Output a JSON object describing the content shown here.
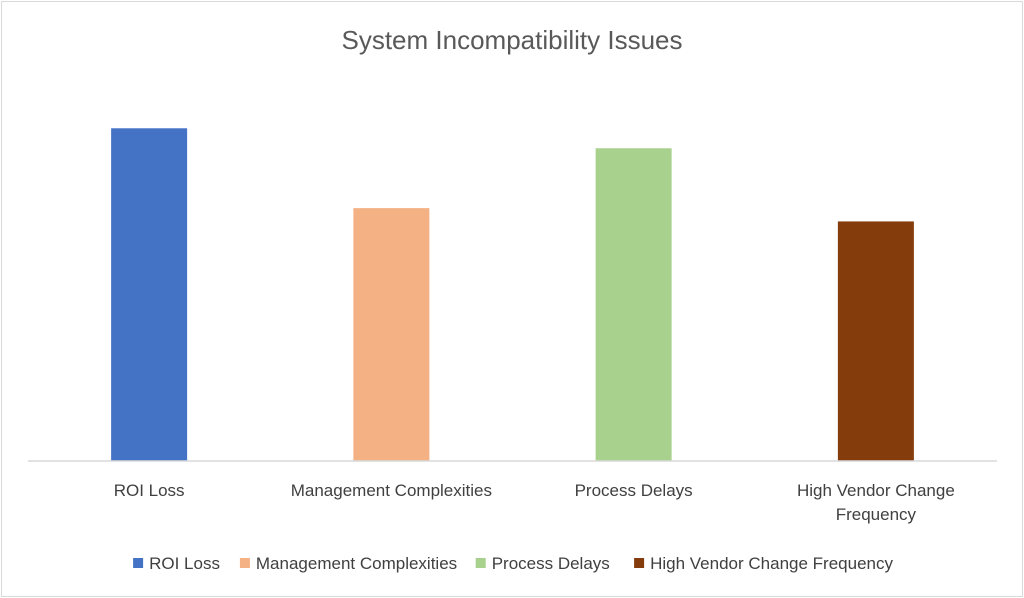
{
  "chart_data": {
    "type": "bar",
    "title": "System Incompatibility Issues",
    "xlabel": "",
    "ylabel": "",
    "categories": [
      "ROI Loss",
      "Management Complexities",
      "Process Delays",
      "High Vendor Change Frequency"
    ],
    "values": [
      5,
      3.8,
      4.7,
      3.6
    ],
    "colors": [
      "#4472c4",
      "#f4b183",
      "#a9d18e",
      "#843c0c"
    ],
    "ylim": [
      0,
      5.5
    ],
    "grid": false,
    "legend": {
      "position": "bottom",
      "entries": [
        "ROI Loss",
        "Management Complexities",
        "Process Delays",
        "High Vendor Change Frequency"
      ]
    }
  }
}
